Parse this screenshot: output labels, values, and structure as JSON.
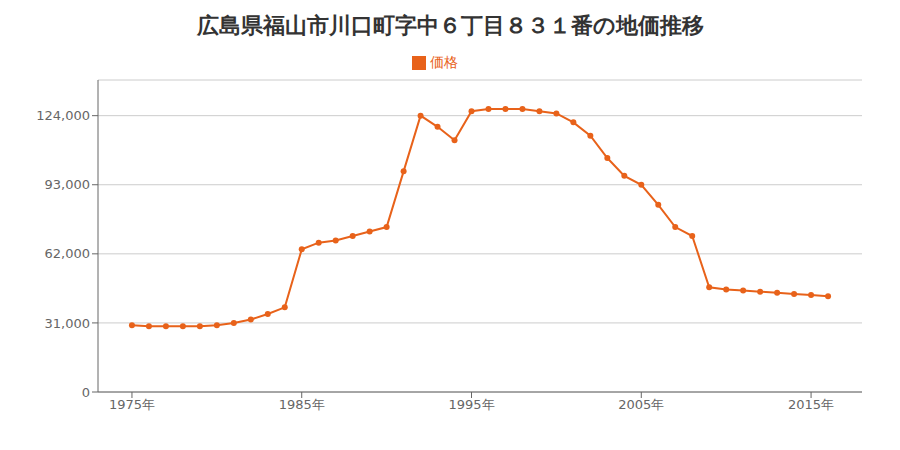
{
  "chart_data": {
    "type": "line",
    "title": "広島県福山市川口町字中６丁目８３１番の地価推移",
    "x": [
      1975,
      1976,
      1977,
      1978,
      1979,
      1980,
      1981,
      1982,
      1983,
      1984,
      1985,
      1986,
      1987,
      1988,
      1989,
      1990,
      1991,
      1992,
      1993,
      1994,
      1995,
      1996,
      1997,
      1998,
      1999,
      2000,
      2001,
      2002,
      2003,
      2004,
      2005,
      2006,
      2007,
      2008,
      2009,
      2010,
      2011,
      2012,
      2013,
      2014,
      2015,
      2016
    ],
    "series": [
      {
        "name": "価格",
        "color": "#e8621a",
        "marker": "circle",
        "values": [
          30000,
          29500,
          29500,
          29500,
          29500,
          30000,
          31000,
          32500,
          35000,
          38000,
          64000,
          67000,
          68000,
          70000,
          72000,
          74000,
          99000,
          124000,
          119000,
          113000,
          126000,
          127000,
          127000,
          127000,
          126000,
          125000,
          121000,
          115000,
          105000,
          97000,
          93000,
          84000,
          74000,
          70000,
          47000,
          46000,
          45500,
          45000,
          44500,
          44000,
          43500,
          43000
        ]
      }
    ],
    "xlim": [
      1973,
      2018
    ],
    "xticks": [
      {
        "value": 1975,
        "label": "1975年"
      },
      {
        "value": 1985,
        "label": "1985年"
      },
      {
        "value": 1995,
        "label": "1995年"
      },
      {
        "value": 2005,
        "label": "2005年"
      },
      {
        "value": 2015,
        "label": "2015年"
      }
    ],
    "ylim": [
      0,
      140000
    ],
    "yticks": [
      0,
      {
        "value": 31000,
        "label": "31,000"
      },
      {
        "value": 62000,
        "label": "62,000"
      },
      {
        "value": 93000,
        "label": "93,000"
      },
      {
        "value": 124000,
        "label": "124,000"
      }
    ],
    "grid": true,
    "legend": "top"
  }
}
